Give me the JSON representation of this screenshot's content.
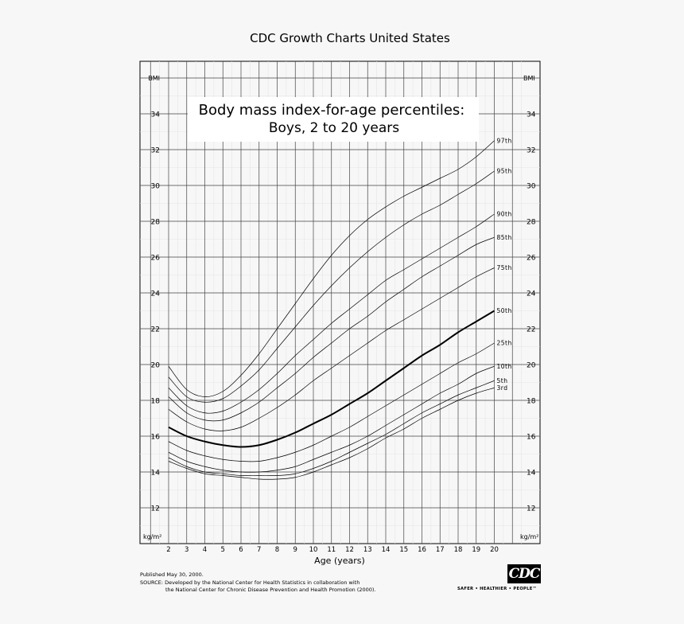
{
  "header": {
    "top_title": "CDC Growth Charts United States"
  },
  "chart_data": {
    "type": "line",
    "title": "Body mass index-for-age percentiles:",
    "subtitle": "Boys, 2 to 20 years",
    "xlabel": "Age (years)",
    "ylabel": "BMI",
    "unit_label": "kg/m²",
    "xlim": [
      2,
      20
    ],
    "ylim": [
      10,
      36
    ],
    "x_ticks": [
      2,
      3,
      4,
      5,
      6,
      7,
      8,
      9,
      10,
      11,
      12,
      13,
      14,
      15,
      16,
      17,
      18,
      19,
      20
    ],
    "y_ticks": [
      12,
      14,
      16,
      18,
      20,
      22,
      24,
      26,
      28,
      30,
      32,
      34
    ],
    "grid": true,
    "x": [
      2,
      3,
      4,
      5,
      6,
      7,
      8,
      9,
      10,
      11,
      12,
      13,
      14,
      15,
      16,
      17,
      18,
      19,
      20
    ],
    "series": [
      {
        "name": "97th",
        "bold": false,
        "values": [
          19.9,
          18.6,
          18.2,
          18.5,
          19.4,
          20.6,
          22.0,
          23.4,
          24.8,
          26.1,
          27.2,
          28.1,
          28.8,
          29.4,
          29.9,
          30.4,
          30.9,
          31.6,
          32.5
        ]
      },
      {
        "name": "95th",
        "bold": false,
        "values": [
          19.3,
          18.2,
          17.9,
          18.1,
          18.8,
          19.7,
          20.9,
          22.1,
          23.3,
          24.4,
          25.4,
          26.3,
          27.1,
          27.8,
          28.4,
          28.9,
          29.5,
          30.1,
          30.8
        ]
      },
      {
        "name": "90th",
        "bold": false,
        "values": [
          18.7,
          17.7,
          17.3,
          17.4,
          17.9,
          18.6,
          19.5,
          20.5,
          21.4,
          22.3,
          23.1,
          23.9,
          24.7,
          25.3,
          25.9,
          26.5,
          27.1,
          27.7,
          28.4
        ]
      },
      {
        "name": "85th",
        "bold": false,
        "values": [
          18.2,
          17.3,
          16.9,
          16.9,
          17.3,
          17.9,
          18.7,
          19.5,
          20.4,
          21.2,
          22.0,
          22.7,
          23.5,
          24.2,
          24.9,
          25.5,
          26.1,
          26.7,
          27.1
        ]
      },
      {
        "name": "75th",
        "bold": false,
        "values": [
          17.5,
          16.8,
          16.4,
          16.3,
          16.5,
          17.0,
          17.6,
          18.3,
          19.1,
          19.8,
          20.5,
          21.2,
          21.9,
          22.5,
          23.1,
          23.7,
          24.3,
          24.9,
          25.4
        ]
      },
      {
        "name": "50th",
        "bold": true,
        "values": [
          16.5,
          16.0,
          15.7,
          15.5,
          15.4,
          15.5,
          15.8,
          16.2,
          16.7,
          17.2,
          17.8,
          18.4,
          19.1,
          19.8,
          20.5,
          21.1,
          21.8,
          22.4,
          23.0
        ]
      },
      {
        "name": "25th",
        "bold": false,
        "values": [
          15.7,
          15.2,
          14.9,
          14.7,
          14.6,
          14.6,
          14.8,
          15.1,
          15.5,
          16.0,
          16.5,
          17.1,
          17.7,
          18.3,
          18.9,
          19.5,
          20.1,
          20.6,
          21.2
        ]
      },
      {
        "name": "10th",
        "bold": false,
        "values": [
          15.1,
          14.6,
          14.3,
          14.1,
          14.0,
          14.0,
          14.1,
          14.3,
          14.7,
          15.1,
          15.5,
          16.0,
          16.6,
          17.2,
          17.8,
          18.4,
          18.9,
          19.5,
          19.9
        ]
      },
      {
        "name": "5th",
        "bold": false,
        "values": [
          14.8,
          14.3,
          14.0,
          13.9,
          13.8,
          13.8,
          13.8,
          13.9,
          14.2,
          14.6,
          15.1,
          15.6,
          16.1,
          16.7,
          17.3,
          17.8,
          18.3,
          18.7,
          19.1
        ]
      },
      {
        "name": "3rd",
        "bold": false,
        "values": [
          14.6,
          14.2,
          13.9,
          13.8,
          13.7,
          13.6,
          13.6,
          13.7,
          14.0,
          14.4,
          14.8,
          15.3,
          15.9,
          16.4,
          17.0,
          17.5,
          18.0,
          18.4,
          18.7
        ]
      }
    ]
  },
  "footer": {
    "published": "Published May 30, 2000.",
    "source_line1": "SOURCE: Developed by the National Center for Health Statistics in collaboration with",
    "source_line2": "the National Center for Chronic Disease Prevention and Health Promotion (2000).",
    "logo_text": "CDC",
    "tagline": "SAFER • HEALTHIER • PEOPLE™"
  }
}
